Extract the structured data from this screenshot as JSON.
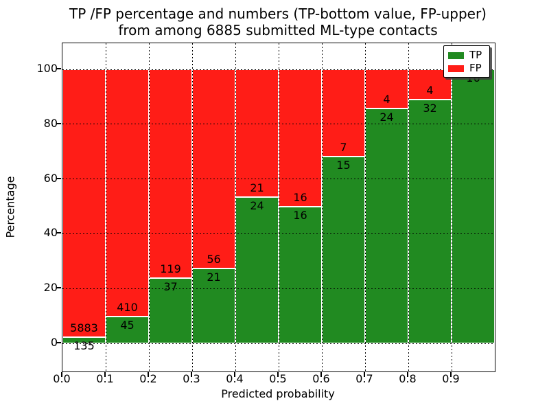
{
  "title": {
    "line1": "TP /FP percentage and numbers (TP-bottom value, FP-upper)",
    "line2": "from among 6885 submitted ML-type contacts"
  },
  "axes": {
    "xlabel": "Predicted probability",
    "ylabel": "Percentage",
    "xtick_labels": [
      "0.0",
      "0.1",
      "0.2",
      "0.3",
      "0.4",
      "0.5",
      "0.6",
      "0.7",
      "0.8",
      "0.9"
    ],
    "ytick_labels": [
      "0",
      "20",
      "40",
      "60",
      "80",
      "100"
    ],
    "ytick_values": [
      0,
      20,
      40,
      60,
      80,
      100
    ]
  },
  "legend": {
    "items": [
      {
        "label": "TP",
        "color": "#218a21"
      },
      {
        "label": "FP",
        "color": "#ff1d17"
      }
    ]
  },
  "colors": {
    "tp": "#218a21",
    "fp": "#ff1d17",
    "grid": "#000000",
    "bar_edge": "#ffffff"
  },
  "bar_labels": {
    "tp": [
      "135",
      "45",
      "37",
      "21",
      "24",
      "16",
      "15",
      "24",
      "32",
      "16"
    ],
    "fp": [
      "5883",
      "410",
      "119",
      "56",
      "21",
      "16",
      "7",
      "4",
      "4",
      ""
    ]
  },
  "chart_data": {
    "type": "bar",
    "stacked": true,
    "units": "percent",
    "title": "TP /FP percentage and numbers (TP-bottom value, FP-upper) from among 6885 submitted ML-type contacts",
    "xlabel": "Predicted probability",
    "ylabel": "Percentage",
    "bins": [
      "0.0-0.1",
      "0.1-0.2",
      "0.2-0.3",
      "0.3-0.4",
      "0.4-0.5",
      "0.5-0.6",
      "0.6-0.7",
      "0.7-0.8",
      "0.8-0.9",
      "0.9-1.0"
    ],
    "series": [
      {
        "name": "TP",
        "color": "#218a21",
        "counts": [
          135,
          45,
          37,
          21,
          24,
          16,
          15,
          24,
          32,
          16
        ]
      },
      {
        "name": "FP",
        "color": "#ff1d17",
        "counts": [
          5883,
          410,
          119,
          56,
          21,
          16,
          7,
          4,
          4,
          0
        ]
      }
    ],
    "tp_percent": [
      2.2,
      9.9,
      23.7,
      27.3,
      53.3,
      50.0,
      68.2,
      85.7,
      88.9,
      100.0
    ],
    "total_contacts": 6885,
    "xlim": [
      0.0,
      1.0
    ],
    "ylim": [
      -10,
      110
    ],
    "grid": true,
    "legend_position": "upper right"
  }
}
